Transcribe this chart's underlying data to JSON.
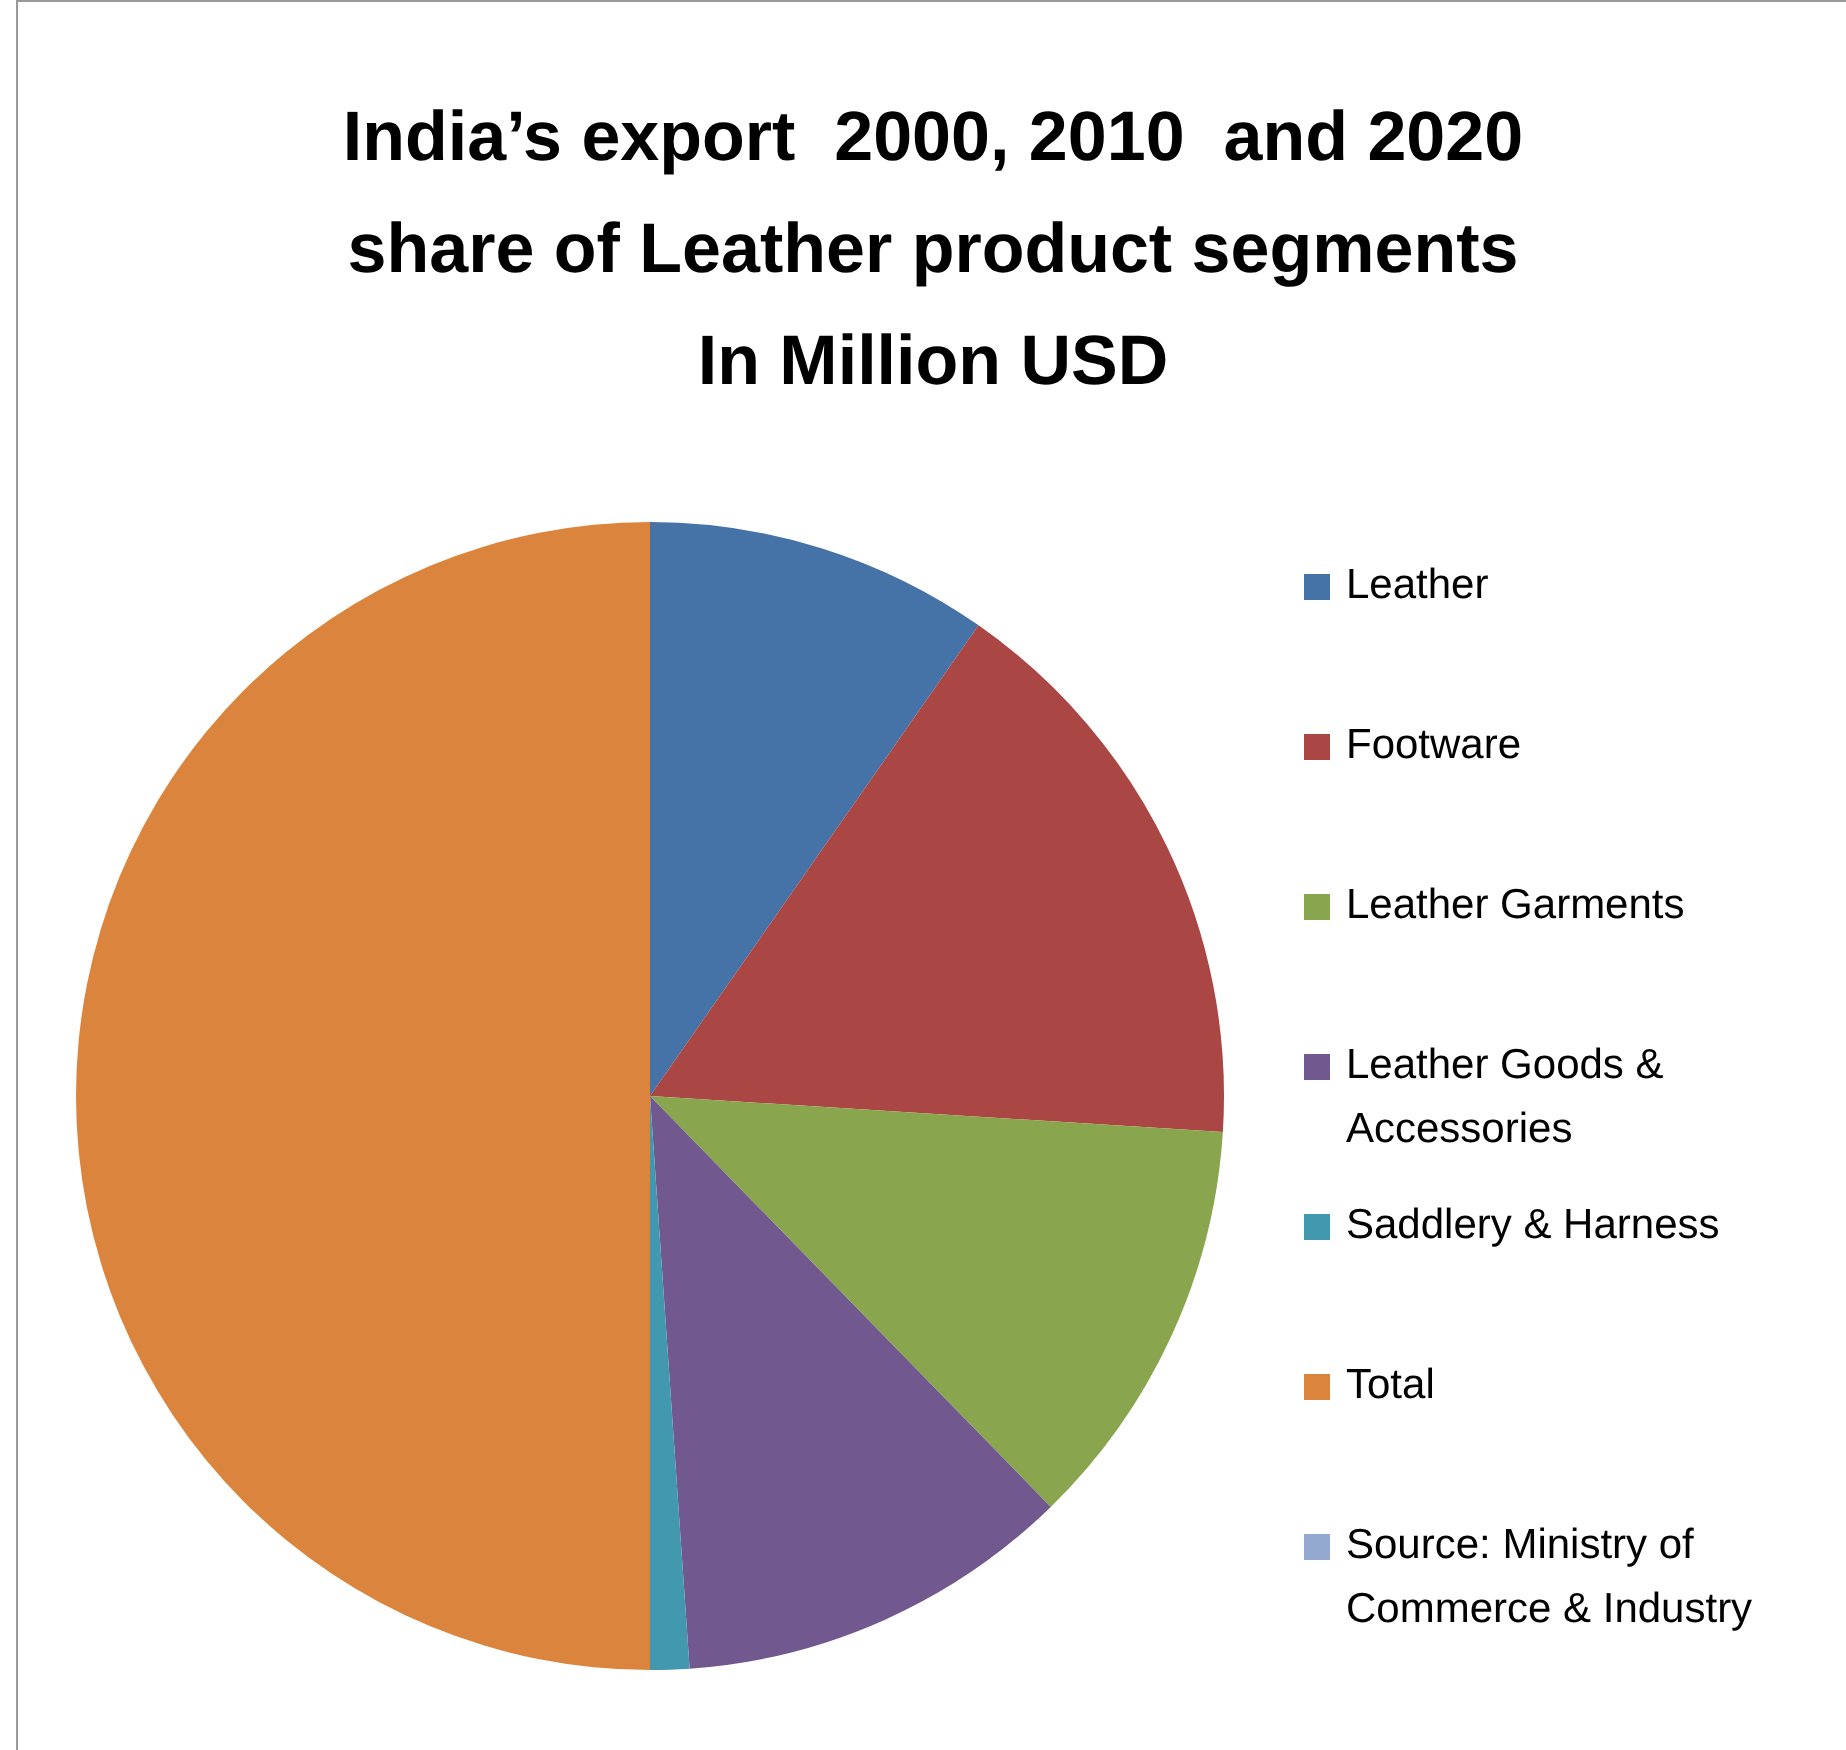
{
  "chart_data": {
    "type": "pie",
    "title": "India’s export  2000, 2010  and 2020\nshare of Leather product segments\nIn Million USD",
    "categories": [
      "Leather",
      "Footware",
      "Leather Garments",
      "Leather Goods & Accessories",
      "Saddlery & Harness",
      "Total",
      "Source: Ministry of Commerce & Industry"
    ],
    "values": [
      9.7,
      16.3,
      11.7,
      11.2,
      1.1,
      50,
      0
    ],
    "colors": [
      "#4572a7",
      "#aa4643",
      "#89a54e",
      "#71588f",
      "#4198af",
      "#db843d",
      "#93a9cf"
    ],
    "legend": "right"
  }
}
